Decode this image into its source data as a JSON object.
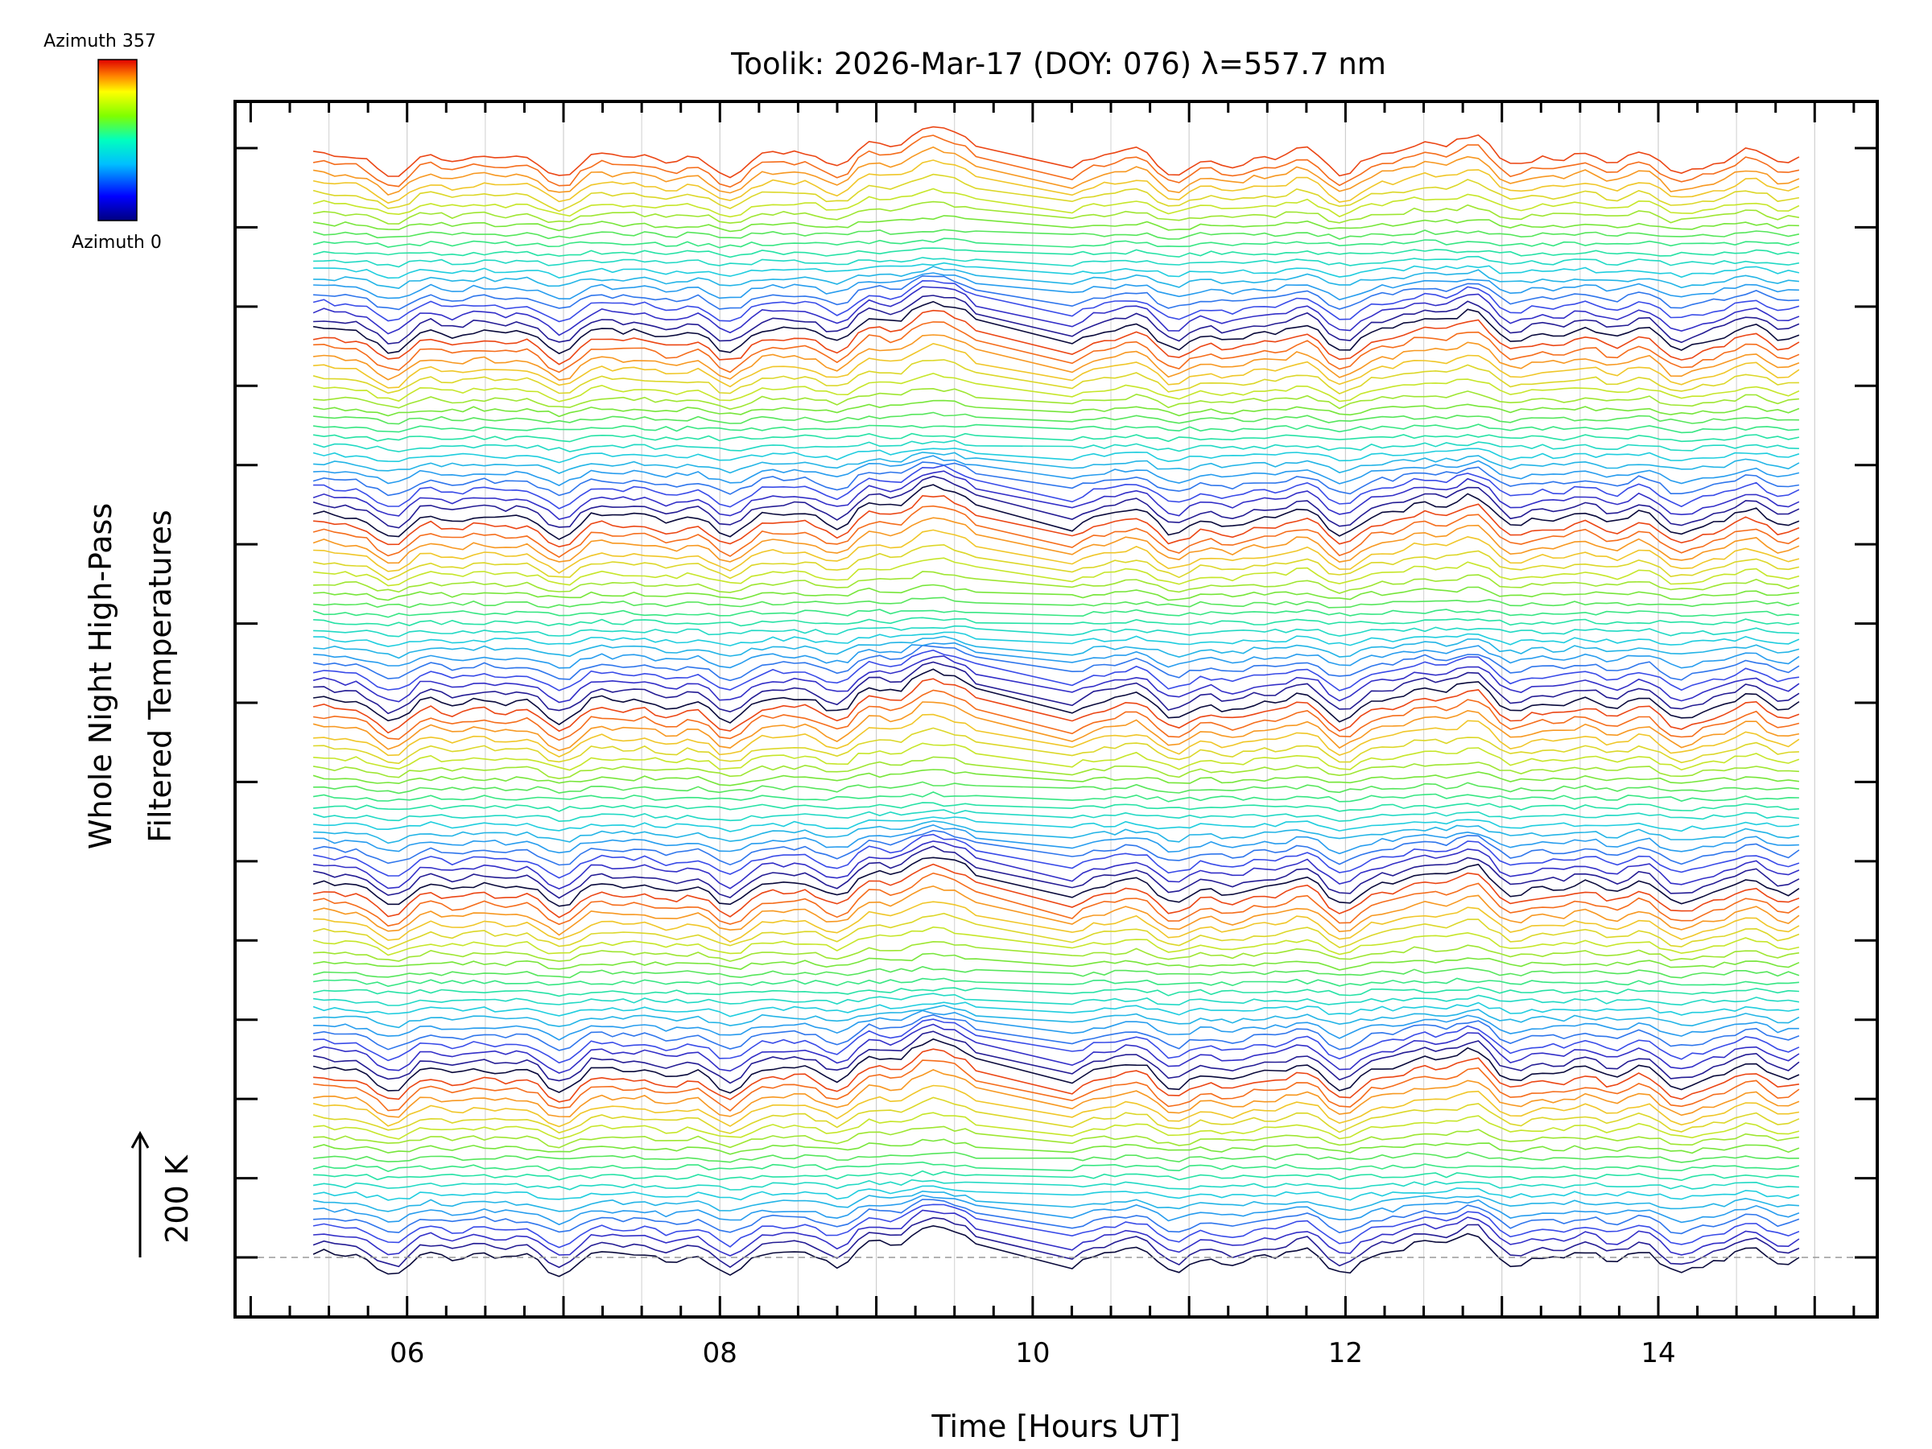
{
  "chart_data": {
    "type": "line",
    "title": "Toolik: 2026-Mar-17 (DOY: 076) λ=557.7 nm",
    "xlabel": "Time [Hours UT]",
    "ylabel_line1": "Whole Night High-Pass",
    "ylabel_line2": "Filtered Temperatures",
    "xlim": [
      4.9,
      15.4
    ],
    "x_tick_labels": [
      "06",
      "08",
      "10",
      "12",
      "14"
    ],
    "x_tick_values": [
      6,
      8,
      10,
      12,
      14
    ],
    "y_tick_count": 15,
    "scale_bar_label": "200 K",
    "scale_bar_kelvin": 200,
    "colorbar": {
      "top_label": "Azimuth 357",
      "bottom_label": "Azimuth 0",
      "min_azimuth": 0,
      "max_azimuth": 357
    },
    "series_description": "Stacked keogram-style traces, one per azimuth bin (0-357 deg), vertically offset, colored by azimuth",
    "series_count": 120,
    "time_start": 5.4,
    "time_end": 14.9,
    "data_gap": [
      9.7,
      10.25
    ],
    "grid": true
  }
}
